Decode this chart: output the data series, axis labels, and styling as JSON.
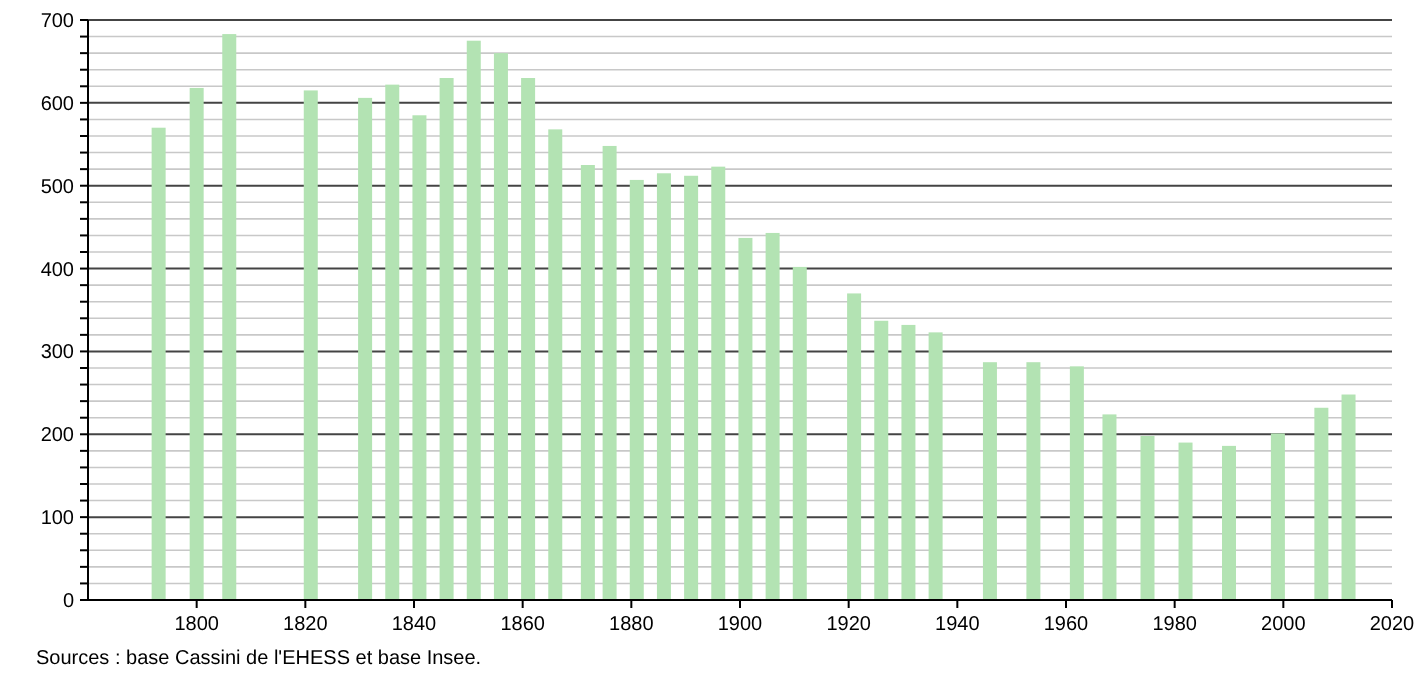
{
  "chart_data": {
    "type": "bar",
    "color": "#b3e3b3",
    "x": [
      1793,
      1800,
      1806,
      1821,
      1831,
      1836,
      1841,
      1846,
      1851,
      1856,
      1861,
      1866,
      1872,
      1876,
      1881,
      1886,
      1891,
      1896,
      1901,
      1906,
      1911,
      1921,
      1926,
      1931,
      1936,
      1946,
      1954,
      1962,
      1968,
      1975,
      1982,
      1990,
      1999,
      2007,
      2012
    ],
    "values": [
      570,
      618,
      683,
      615,
      606,
      622,
      585,
      630,
      675,
      660,
      630,
      568,
      525,
      548,
      507,
      515,
      512,
      523,
      437,
      443,
      402,
      370,
      337,
      332,
      323,
      287,
      287,
      282,
      224,
      198,
      190,
      186,
      201,
      232,
      248
    ],
    "xlim": [
      1780,
      2020
    ],
    "xticks": [
      1800,
      1820,
      1840,
      1860,
      1880,
      1900,
      1920,
      1940,
      1960,
      1980,
      2000,
      2020
    ],
    "ylim": [
      0,
      700
    ],
    "yticks": [
      0,
      {
        "value": 20,
        "label": null
      },
      {
        "value": 40,
        "label": null
      },
      {
        "value": 60,
        "label": null
      },
      {
        "value": 80,
        "label": null
      },
      100,
      {
        "value": 120,
        "label": null
      },
      {
        "value": 140,
        "label": null
      },
      {
        "value": 160,
        "label": null
      },
      {
        "value": 180,
        "label": null
      },
      200,
      {
        "value": 220,
        "label": null
      },
      {
        "value": 240,
        "label": null
      },
      {
        "value": 260,
        "label": null
      },
      {
        "value": 280,
        "label": null
      },
      300,
      {
        "value": 320,
        "label": null
      },
      {
        "value": 340,
        "label": null
      },
      {
        "value": 360,
        "label": null
      },
      {
        "value": 380,
        "label": null
      },
      400,
      {
        "value": 420,
        "label": null
      },
      {
        "value": 440,
        "label": null
      },
      {
        "value": 460,
        "label": null
      },
      {
        "value": 480,
        "label": null
      },
      500,
      {
        "value": 520,
        "label": null
      },
      {
        "value": 540,
        "label": null
      },
      {
        "value": 560,
        "label": null
      },
      {
        "value": 580,
        "label": null
      },
      600,
      {
        "value": 620,
        "label": null
      },
      {
        "value": 640,
        "label": null
      },
      {
        "value": 660,
        "label": null
      },
      {
        "value": 680,
        "label": null
      },
      700
    ],
    "grid": "y",
    "annotations": [
      "Sources : base Cassini de l'EHESS et base Insee."
    ]
  }
}
